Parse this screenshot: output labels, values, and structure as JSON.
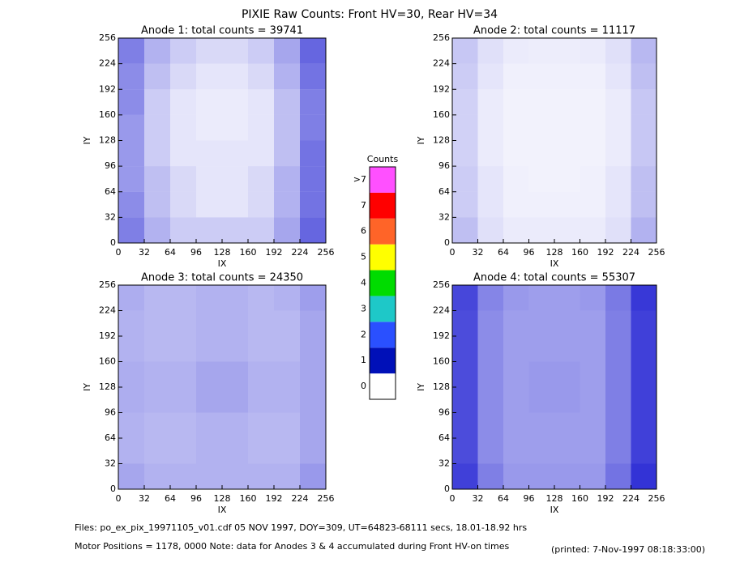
{
  "title": "PIXIE Raw Counts:  Front HV=30, Rear HV=34",
  "chart_data": [
    {
      "type": "heatmap",
      "title": "Anode 1: total counts = 39741",
      "x_label": "IX",
      "y_label": "IY",
      "color": "#0000cc",
      "xlim": [
        0,
        256
      ],
      "ylim": [
        0,
        256
      ],
      "xticks": [
        0,
        32,
        64,
        96,
        128,
        160,
        192,
        224,
        256
      ],
      "yticks": [
        0,
        32,
        64,
        96,
        128,
        160,
        192,
        224,
        256
      ],
      "z": [
        [
          0.5,
          0.3,
          0.2,
          0.2,
          0.2,
          0.2,
          0.35,
          0.6
        ],
        [
          0.45,
          0.25,
          0.15,
          0.1,
          0.1,
          0.15,
          0.3,
          0.55
        ],
        [
          0.4,
          0.25,
          0.15,
          0.1,
          0.1,
          0.15,
          0.3,
          0.55
        ],
        [
          0.4,
          0.2,
          0.1,
          0.1,
          0.1,
          0.1,
          0.25,
          0.55
        ],
        [
          0.4,
          0.2,
          0.1,
          0.08,
          0.08,
          0.1,
          0.25,
          0.5
        ],
        [
          0.45,
          0.2,
          0.1,
          0.08,
          0.08,
          0.1,
          0.25,
          0.5
        ],
        [
          0.45,
          0.25,
          0.15,
          0.1,
          0.1,
          0.15,
          0.3,
          0.55
        ],
        [
          0.5,
          0.3,
          0.2,
          0.15,
          0.15,
          0.2,
          0.35,
          0.6
        ]
      ]
    },
    {
      "type": "heatmap",
      "title": "Anode 2: total counts = 11117",
      "x_label": "IX",
      "y_label": "IY",
      "color": "#0000cc",
      "xlim": [
        0,
        256
      ],
      "ylim": [
        0,
        256
      ],
      "xticks": [
        0,
        32,
        64,
        96,
        128,
        160,
        192,
        224,
        256
      ],
      "yticks": [
        0,
        32,
        64,
        96,
        128,
        160,
        192,
        224,
        256
      ],
      "z": [
        [
          0.25,
          0.12,
          0.08,
          0.08,
          0.08,
          0.08,
          0.12,
          0.3
        ],
        [
          0.2,
          0.1,
          0.06,
          0.06,
          0.06,
          0.06,
          0.1,
          0.25
        ],
        [
          0.2,
          0.1,
          0.06,
          0.05,
          0.05,
          0.06,
          0.1,
          0.25
        ],
        [
          0.18,
          0.08,
          0.05,
          0.05,
          0.05,
          0.05,
          0.08,
          0.22
        ],
        [
          0.18,
          0.08,
          0.05,
          0.05,
          0.05,
          0.05,
          0.08,
          0.22
        ],
        [
          0.18,
          0.08,
          0.05,
          0.05,
          0.05,
          0.05,
          0.08,
          0.22
        ],
        [
          0.2,
          0.1,
          0.06,
          0.06,
          0.06,
          0.06,
          0.1,
          0.25
        ],
        [
          0.22,
          0.12,
          0.08,
          0.07,
          0.07,
          0.08,
          0.12,
          0.28
        ]
      ]
    },
    {
      "type": "heatmap",
      "title": "Anode 3: total counts = 24350",
      "x_label": "IX",
      "y_label": "IY",
      "color": "#0000cc",
      "xlim": [
        0,
        256
      ],
      "ylim": [
        0,
        256
      ],
      "xticks": [
        0,
        32,
        64,
        96,
        128,
        160,
        192,
        224,
        256
      ],
      "yticks": [
        0,
        32,
        64,
        96,
        128,
        160,
        192,
        224,
        256
      ],
      "z": [
        [
          0.35,
          0.3,
          0.3,
          0.3,
          0.3,
          0.3,
          0.3,
          0.4
        ],
        [
          0.3,
          0.28,
          0.28,
          0.3,
          0.3,
          0.28,
          0.28,
          0.35
        ],
        [
          0.3,
          0.28,
          0.28,
          0.3,
          0.3,
          0.28,
          0.28,
          0.35
        ],
        [
          0.32,
          0.3,
          0.3,
          0.35,
          0.35,
          0.3,
          0.3,
          0.35
        ],
        [
          0.32,
          0.3,
          0.3,
          0.35,
          0.35,
          0.3,
          0.3,
          0.35
        ],
        [
          0.3,
          0.28,
          0.28,
          0.3,
          0.3,
          0.28,
          0.28,
          0.35
        ],
        [
          0.3,
          0.28,
          0.28,
          0.3,
          0.3,
          0.28,
          0.28,
          0.35
        ],
        [
          0.32,
          0.28,
          0.28,
          0.3,
          0.3,
          0.28,
          0.3,
          0.38
        ]
      ]
    },
    {
      "type": "heatmap",
      "title": "Anode 4: total counts = 55307",
      "x_label": "IX",
      "y_label": "IY",
      "color": "#0000cc",
      "xlim": [
        0,
        256
      ],
      "ylim": [
        0,
        256
      ],
      "xticks": [
        0,
        32,
        64,
        96,
        128,
        160,
        192,
        224,
        256
      ],
      "yticks": [
        0,
        32,
        64,
        96,
        128,
        160,
        192,
        224,
        256
      ],
      "z": [
        [
          0.75,
          0.5,
          0.4,
          0.4,
          0.4,
          0.4,
          0.55,
          0.8
        ],
        [
          0.7,
          0.45,
          0.38,
          0.38,
          0.38,
          0.38,
          0.5,
          0.75
        ],
        [
          0.7,
          0.45,
          0.38,
          0.38,
          0.38,
          0.38,
          0.5,
          0.75
        ],
        [
          0.7,
          0.45,
          0.38,
          0.4,
          0.4,
          0.38,
          0.5,
          0.75
        ],
        [
          0.7,
          0.45,
          0.38,
          0.4,
          0.4,
          0.38,
          0.5,
          0.75
        ],
        [
          0.7,
          0.45,
          0.38,
          0.38,
          0.38,
          0.38,
          0.5,
          0.75
        ],
        [
          0.7,
          0.45,
          0.38,
          0.38,
          0.38,
          0.38,
          0.5,
          0.75
        ],
        [
          0.72,
          0.48,
          0.4,
          0.38,
          0.38,
          0.4,
          0.52,
          0.78
        ]
      ]
    }
  ],
  "colorbar": {
    "title": "Counts",
    "ticks": [
      0,
      1,
      2,
      3,
      4,
      5,
      6,
      7,
      {
        "value": 8,
        "label": ">7"
      }
    ],
    "colors": [
      "#ffffff",
      "#0010b8",
      "#2a50ff",
      "#1ec8c8",
      "#00dc00",
      "#ffff00",
      "#ff6428",
      "#ff0000",
      "#ff50ff"
    ]
  },
  "footer": {
    "files": "Files: po_ex_pix_19971105_v01.cdf    05 NOV 1997, DOY=309, UT=64823-68111 secs, 18.01-18.92 hrs",
    "motor": "Motor Positions = 1178, 0000    Note: data for Anodes 3 & 4 accumulated during Front HV-on times",
    "printed": "(printed:  7-Nov-1997 08:18:33:00)"
  }
}
